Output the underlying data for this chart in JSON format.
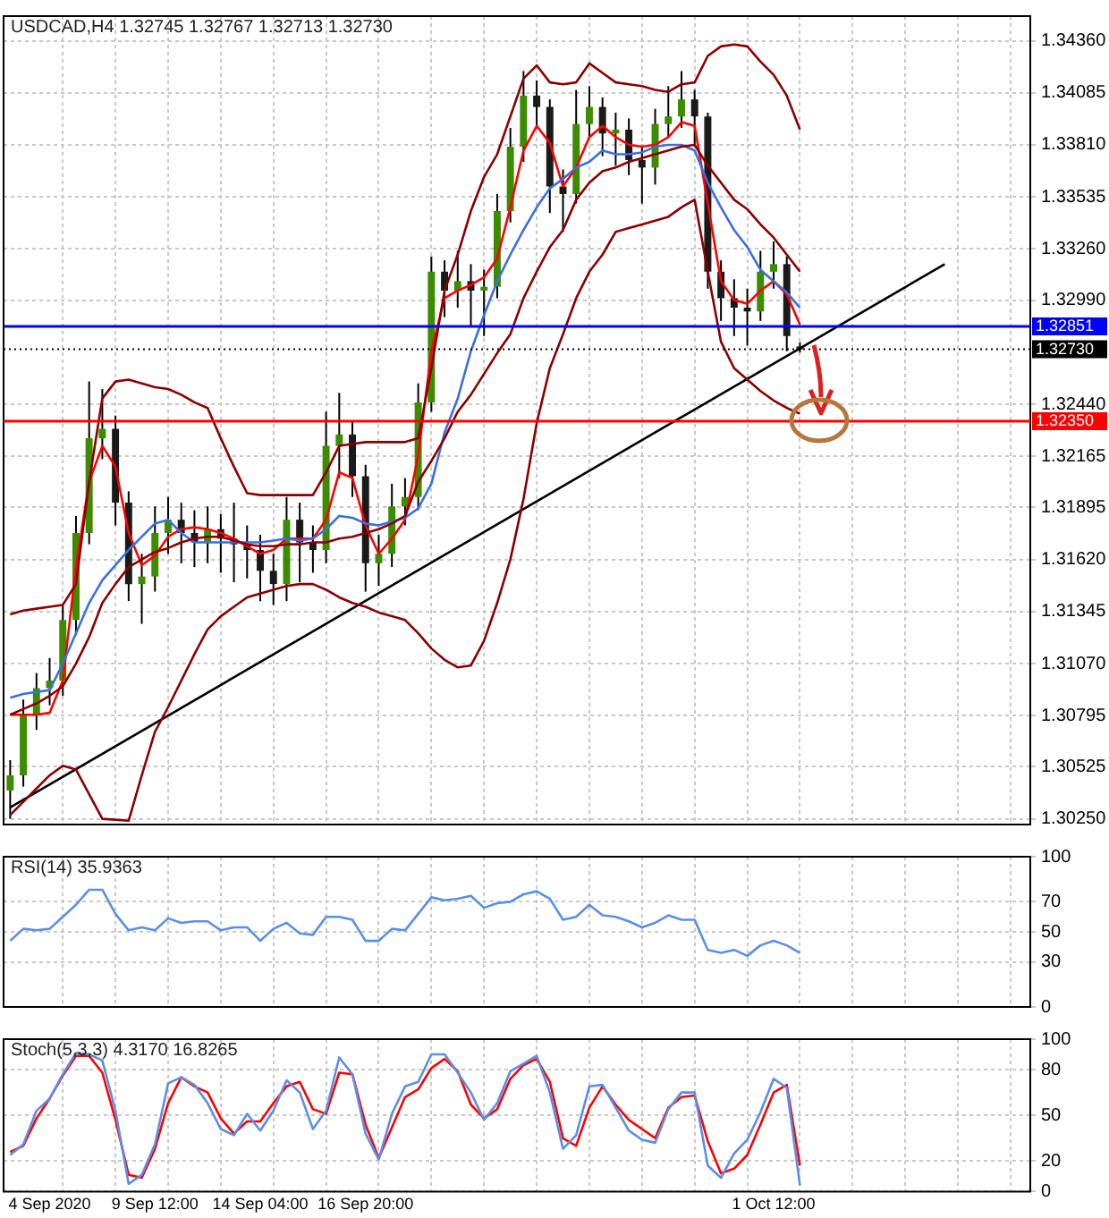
{
  "chart_data": [
    {
      "type": "candlestick",
      "title": "USDCAD,H4 1.32745 1.32767 1.32713 1.32730",
      "categories": [
        null,
        null,
        null,
        null,
        null,
        null,
        null,
        null,
        null,
        null,
        null,
        null,
        null,
        null,
        null,
        null,
        null,
        null,
        null,
        null,
        null,
        null,
        null,
        null,
        null,
        null,
        null,
        null,
        null,
        null,
        null,
        null,
        null,
        null,
        null,
        null,
        null,
        null,
        null,
        null,
        null,
        null,
        null,
        null,
        null,
        null,
        null,
        null,
        null,
        null,
        null,
        null,
        null,
        null,
        null,
        null,
        null,
        null,
        null,
        null,
        null,
        null,
        null,
        null,
        null,
        null,
        null,
        null,
        null,
        null,
        null,
        null,
        null,
        null,
        null,
        null,
        null,
        null
      ],
      "ohlc": [
        [
          1.304,
          1.3056,
          1.3025,
          1.3048
        ],
        [
          1.3048,
          1.3088,
          1.3042,
          1.308
        ],
        [
          1.308,
          1.3102,
          1.3072,
          1.3094
        ],
        [
          1.3094,
          1.311,
          1.3085,
          1.3098
        ],
        [
          1.3098,
          1.3138,
          1.309,
          1.313
        ],
        [
          1.313,
          1.3185,
          1.3122,
          1.3176
        ],
        [
          1.3176,
          1.3256,
          1.317,
          1.3226
        ],
        [
          1.3226,
          1.3252,
          1.3215,
          1.3231
        ],
        [
          1.3231,
          1.3238,
          1.318,
          1.3192
        ],
        [
          1.3192,
          1.3198,
          1.314,
          1.3149
        ],
        [
          1.3149,
          1.3165,
          1.3128,
          1.3153
        ],
        [
          1.3153,
          1.319,
          1.3145,
          1.3176
        ],
        [
          1.3176,
          1.3195,
          1.3165,
          1.3183
        ],
        [
          1.3183,
          1.3192,
          1.316,
          1.3176
        ],
        [
          1.3176,
          1.3188,
          1.3158,
          1.3171
        ],
        [
          1.3171,
          1.319,
          1.316,
          1.3178
        ],
        [
          1.3178,
          1.3186,
          1.3155,
          1.3173
        ],
        [
          1.3173,
          1.3192,
          1.315,
          1.317
        ],
        [
          1.317,
          1.318,
          1.3152,
          1.3167
        ],
        [
          1.3167,
          1.3175,
          1.314,
          1.3156
        ],
        [
          1.3156,
          1.3165,
          1.3138,
          1.3149
        ],
        [
          1.3149,
          1.3195,
          1.314,
          1.3183
        ],
        [
          1.3183,
          1.3192,
          1.315,
          1.3171
        ],
        [
          1.3171,
          1.318,
          1.3155,
          1.3167
        ],
        [
          1.3167,
          1.324,
          1.316,
          1.3222
        ],
        [
          1.3222,
          1.325,
          1.3205,
          1.3228
        ],
        [
          1.3228,
          1.3235,
          1.3195,
          1.3206
        ],
        [
          1.3206,
          1.3212,
          1.3145,
          1.316
        ],
        [
          1.316,
          1.3175,
          1.3148,
          1.3165
        ],
        [
          1.3165,
          1.3202,
          1.3158,
          1.319
        ],
        [
          1.319,
          1.3205,
          1.318,
          1.3195
        ],
        [
          1.3195,
          1.3255,
          1.3188,
          1.3245
        ],
        [
          1.3245,
          1.3322,
          1.324,
          1.3314
        ],
        [
          1.3314,
          1.332,
          1.329,
          1.3304
        ],
        [
          1.3304,
          1.3325,
          1.3295,
          1.3309
        ],
        [
          1.3309,
          1.3318,
          1.3285,
          1.3304
        ],
        [
          1.3304,
          1.3315,
          1.328,
          1.3306
        ],
        [
          1.3306,
          1.3355,
          1.33,
          1.3346
        ],
        [
          1.3346,
          1.339,
          1.334,
          1.338
        ],
        [
          1.338,
          1.342,
          1.3372,
          1.3407
        ],
        [
          1.3407,
          1.3415,
          1.339,
          1.3401
        ],
        [
          1.3401,
          1.3405,
          1.3345,
          1.3359
        ],
        [
          1.3359,
          1.3368,
          1.3335,
          1.3355
        ],
        [
          1.3355,
          1.341,
          1.335,
          1.3392
        ],
        [
          1.3392,
          1.3412,
          1.3385,
          1.3401
        ],
        [
          1.3401,
          1.3406,
          1.3375,
          1.3387
        ],
        [
          1.3387,
          1.3398,
          1.337,
          1.3389
        ],
        [
          1.3389,
          1.3395,
          1.3365,
          1.3373
        ],
        [
          1.3373,
          1.338,
          1.335,
          1.3369
        ],
        [
          1.3369,
          1.34,
          1.336,
          1.3392
        ],
        [
          1.3392,
          1.3412,
          1.3385,
          1.3396
        ],
        [
          1.3396,
          1.342,
          1.339,
          1.3405
        ],
        [
          1.3405,
          1.341,
          1.338,
          1.3396
        ],
        [
          1.3396,
          1.3398,
          1.3305,
          1.3314
        ],
        [
          1.3314,
          1.332,
          1.3288,
          1.33
        ],
        [
          1.33,
          1.331,
          1.328,
          1.3295
        ],
        [
          1.3295,
          1.3305,
          1.3275,
          1.3293
        ],
        [
          1.3293,
          1.3325,
          1.3288,
          1.3314
        ],
        [
          1.3314,
          1.333,
          1.3305,
          1.3318
        ],
        [
          1.3318,
          1.3322,
          1.3272,
          1.328
        ],
        [
          1.32745,
          1.32767,
          1.32713,
          1.3273
        ],
        null,
        null,
        null,
        null,
        null,
        null,
        null,
        null,
        null,
        null,
        null,
        null,
        null,
        null,
        null,
        null,
        null
      ],
      "colors": [
        "#3c8c00",
        "#3c8c00",
        "#3c8c00",
        "#3c8c00",
        "#3c8c00",
        "#3c8c00",
        "#3c8c00",
        "#3c8c00",
        "#1a1a1a",
        "#1a1a1a",
        "#3c8c00",
        "#3c8c00",
        "#3c8c00",
        "#1a1a1a",
        "#1a1a1a",
        "#3c8c00",
        "#1a1a1a",
        "#1a1a1a",
        "#1a1a1a",
        "#1a1a1a",
        "#1a1a1a",
        "#3c8c00",
        "#1a1a1a",
        "#1a1a1a",
        "#3c8c00",
        "#3c8c00",
        "#1a1a1a",
        "#1a1a1a",
        "#3c8c00",
        "#3c8c00",
        "#3c8c00",
        "#3c8c00",
        "#3c8c00",
        "#1a1a1a",
        "#3c8c00",
        "#1a1a1a",
        "#3c8c00",
        "#3c8c00",
        "#3c8c00",
        "#3c8c00",
        "#1a1a1a",
        "#1a1a1a",
        "#1a1a1a",
        "#3c8c00",
        "#3c8c00",
        "#1a1a1a",
        "#3c8c00",
        "#1a1a1a",
        "#1a1a1a",
        "#3c8c00",
        "#3c8c00",
        "#3c8c00",
        "#1a1a1a",
        "#1a1a1a",
        "#1a1a1a",
        "#1a1a1a",
        "#1a1a1a",
        "#3c8c00",
        "#3c8c00",
        "#1a1a1a",
        "#1a1a1a",
        null,
        null,
        null,
        null,
        null,
        null,
        null,
        null,
        null,
        null,
        null,
        null,
        null,
        null,
        null,
        null,
        null
      ],
      "series": [
        {
          "type": "line",
          "color": "#8b0000",
          "values": [
            1.3133,
            1.3135,
            1.3136,
            1.3137,
            1.3138,
            1.3149,
            1.3203,
            1.3247,
            1.3256,
            1.3257,
            1.3255,
            1.3253,
            1.3252,
            1.3249,
            1.3245,
            1.3242,
            1.3226,
            1.3211,
            1.3197,
            1.3196,
            1.3196,
            1.3196,
            1.3196,
            1.3196,
            1.3208,
            1.3222,
            1.3223,
            1.3224,
            1.3224,
            1.3224,
            1.3224,
            1.3226,
            1.3263,
            1.3304,
            1.3323,
            1.3346,
            1.3364,
            1.3376,
            1.3396,
            1.3416,
            1.3423,
            1.3414,
            1.3413,
            1.3414,
            1.3424,
            1.3419,
            1.3414,
            1.3413,
            1.3412,
            1.341,
            1.3409,
            1.3413,
            1.3414,
            1.3428,
            1.3433,
            1.3434,
            1.3433,
            1.3425,
            1.3418,
            1.3407,
            1.3389,
            null,
            null,
            null,
            null,
            null,
            null,
            null,
            null,
            null,
            null,
            null,
            null,
            null,
            null,
            null,
            null,
            null
          ]
        },
        {
          "type": "line",
          "color": "#8b0000",
          "values": [
            1.308,
            1.3083,
            1.3086,
            1.309,
            1.3095,
            1.3107,
            1.3121,
            1.3139,
            1.3149,
            1.3158,
            1.3162,
            1.3166,
            1.3168,
            1.3171,
            1.3173,
            1.3174,
            1.3174,
            1.3172,
            1.317,
            1.3169,
            1.3169,
            1.317,
            1.317,
            1.3171,
            1.3171,
            1.3173,
            1.3174,
            1.3176,
            1.3178,
            1.3181,
            1.3185,
            1.3203,
            1.3214,
            1.3226,
            1.324,
            1.3249,
            1.326,
            1.3271,
            1.3281,
            1.33,
            1.3314,
            1.3327,
            1.3336,
            1.3352,
            1.3361,
            1.3367,
            1.3369,
            1.3372,
            1.3374,
            1.3376,
            1.3378,
            1.338,
            1.3381,
            1.337,
            1.3361,
            1.3352,
            1.3347,
            1.3339,
            1.3332,
            1.3323,
            1.3314,
            null,
            null,
            null,
            null,
            null,
            null,
            null,
            null,
            null,
            null,
            null,
            null,
            null,
            null,
            null,
            null,
            null
          ]
        },
        {
          "type": "line",
          "color": "#8b0000",
          "values": [
            1.3027,
            1.3034,
            1.3041,
            1.3048,
            1.3053,
            1.3051,
            1.3038,
            1.3025,
            null,
            1.3024,
            1.3048,
            1.3071,
            1.3084,
            1.3098,
            1.3112,
            1.3125,
            1.3132,
            1.3137,
            1.3142,
            1.3144,
            1.3146,
            1.3148,
            1.3149,
            1.3149,
            1.3146,
            1.3142,
            1.3139,
            1.3137,
            1.3134,
            1.3132,
            1.313,
            1.3123,
            1.3115,
            1.3109,
            1.3105,
            1.3106,
            1.3119,
            1.3139,
            1.3162,
            1.3194,
            1.3234,
            1.3263,
            1.3281,
            1.33,
            1.3314,
            1.3323,
            1.3335,
            1.3337,
            1.3339,
            1.3341,
            1.3343,
            1.3348,
            1.3352,
            1.3314,
            1.3277,
            1.3263,
            1.3257,
            1.3251,
            1.3246,
            1.3242,
            1.3239,
            null,
            null,
            null,
            null,
            null,
            null,
            null,
            null,
            null,
            null,
            null,
            null,
            null,
            null,
            null,
            null,
            null
          ]
        },
        {
          "type": "line",
          "color": "#3a6fe0",
          "values": [
            1.3089,
            1.3091,
            1.3092,
            1.3093,
            1.3107,
            1.3123,
            1.3139,
            1.3151,
            1.3159,
            1.3167,
            1.3174,
            1.3181,
            1.3183,
            1.3176,
            1.3171,
            1.3171,
            1.3171,
            1.3171,
            1.3171,
            1.3171,
            1.3172,
            1.3173,
            1.3172,
            1.3173,
            1.3178,
            1.3185,
            1.3184,
            1.3181,
            1.318,
            1.3182,
            1.3184,
            1.3189,
            1.3202,
            1.3229,
            1.3247,
            1.3272,
            1.3291,
            1.3309,
            1.3323,
            1.3336,
            1.3348,
            1.3358,
            1.3363,
            1.3369,
            1.3372,
            1.3378,
            1.3376,
            1.3376,
            1.3377,
            1.338,
            1.3381,
            1.3381,
            1.3378,
            1.3361,
            1.3348,
            1.3336,
            1.3327,
            1.3315,
            1.3309,
            1.3303,
            1.3295,
            null,
            null,
            null,
            null,
            null,
            null,
            null,
            null,
            null,
            null,
            null,
            null,
            null,
            null,
            null,
            null,
            null
          ]
        },
        {
          "type": "line",
          "color": "#ff0000",
          "values": [
            1.308,
            1.308,
            1.308,
            1.3081,
            1.3098,
            1.3158,
            1.3203,
            1.3222,
            1.3211,
            1.3176,
            1.3159,
            1.3164,
            1.3174,
            1.3178,
            1.3179,
            1.3178,
            1.3176,
            1.3173,
            1.3169,
            1.3165,
            1.3167,
            1.3173,
            1.3173,
            1.3173,
            1.3183,
            1.3208,
            1.3205,
            1.318,
            1.3165,
            1.3173,
            1.3183,
            1.3217,
            1.3272,
            1.33,
            1.3304,
            1.3307,
            1.3311,
            1.3321,
            1.3348,
            1.3378,
            1.3391,
            1.3382,
            1.3359,
            1.3369,
            1.3385,
            1.3391,
            1.3385,
            1.3381,
            1.338,
            1.3381,
            1.3385,
            1.3393,
            1.3391,
            1.335,
            1.3309,
            1.3299,
            1.3297,
            1.3304,
            1.3309,
            1.3302,
            1.3286,
            null,
            null,
            null,
            null,
            null,
            null,
            null,
            null,
            null,
            null,
            null,
            null,
            null,
            null,
            null,
            null,
            null
          ]
        },
        {
          "type": "line",
          "color": "#000000",
          "values": [
            1.3031,
            null,
            null,
            null,
            null,
            null,
            null,
            null,
            null,
            null,
            null,
            null,
            null,
            null,
            null,
            null,
            null,
            null,
            null,
            null,
            null,
            null,
            null,
            null,
            null,
            null,
            null,
            null,
            null,
            null,
            null,
            null,
            null,
            null,
            null,
            null,
            null,
            null,
            null,
            null,
            null,
            null,
            null,
            null,
            null,
            null,
            null,
            null,
            null,
            null,
            null,
            null,
            null,
            null,
            null,
            null,
            null,
            null,
            null,
            null,
            null,
            null,
            null,
            null,
            null,
            null,
            null,
            null,
            null,
            null,
            null,
            1.3318,
            null,
            null,
            null,
            null,
            null,
            null
          ]
        }
      ],
      "ylim": [
        1.3022,
        1.3449
      ],
      "yticks": [
        {
          "value": 1.3025,
          "label": "1.30250"
        },
        {
          "value": 1.30525,
          "label": "1.30525"
        },
        {
          "value": 1.30795,
          "label": "1.30795"
        },
        {
          "value": 1.3107,
          "label": "1.31070"
        },
        {
          "value": 1.31345,
          "label": "1.31345"
        },
        {
          "value": 1.3162,
          "label": "1.31620"
        },
        {
          "value": 1.31895,
          "label": "1.31895"
        },
        {
          "value": 1.32165,
          "label": "1.32165"
        },
        {
          "value": 1.3244,
          "label": "1.32440"
        },
        {
          "value": 1.3299,
          "label": "1.32990"
        },
        {
          "value": 1.3326,
          "label": "1.33260"
        },
        {
          "value": 1.33535,
          "label": "1.33535"
        },
        {
          "value": 1.3381,
          "label": "1.33810"
        },
        {
          "value": 1.34085,
          "label": "1.34085"
        },
        {
          "value": 1.3436,
          "label": "1.34360"
        }
      ],
      "ref_lines": [
        {
          "axis": "y",
          "value": 1.32851,
          "label": "1.32851",
          "color": "#0000ff",
          "line_style": "solid"
        },
        {
          "axis": "y",
          "value": 1.3235,
          "label": "1.32350",
          "color": "#ff0000",
          "line_style": "solid"
        },
        {
          "axis": "y",
          "value": 1.3273,
          "label": "1.32730",
          "color": "#000000",
          "line_style": "dotted"
        }
      ],
      "grid": true,
      "tick_labels": "y"
    },
    {
      "type": "line",
      "title": "RSI(14) 35.9363",
      "categories": [
        null,
        null,
        null,
        null,
        null,
        null,
        null,
        null,
        null,
        null,
        null,
        null,
        null,
        null,
        null,
        null,
        null,
        null,
        null,
        null,
        null,
        null,
        null,
        null,
        null,
        null,
        null,
        null,
        null,
        null,
        null,
        null,
        null,
        null,
        null,
        null,
        null,
        null,
        null,
        null,
        null,
        null,
        null,
        null,
        null,
        null,
        null,
        null,
        null,
        null,
        null,
        null,
        null,
        null,
        null,
        null,
        null,
        null,
        null,
        null,
        null,
        null,
        null,
        null,
        null,
        null,
        null,
        null,
        null,
        null,
        null,
        null,
        null,
        null,
        null,
        null,
        null,
        null
      ],
      "series": [
        {
          "color": "#5b8ee6",
          "values": [
            44,
            52,
            51,
            52,
            60,
            68,
            78,
            78,
            62,
            51,
            53,
            51,
            59,
            56,
            57,
            57,
            51,
            53,
            53,
            44,
            52,
            56,
            49,
            48,
            60,
            60,
            58,
            44,
            44,
            52,
            51,
            62,
            73,
            71,
            72,
            74,
            66,
            69,
            70,
            75,
            77,
            72,
            58,
            60,
            68,
            61,
            60,
            57,
            53,
            56,
            61,
            58,
            58,
            38,
            36,
            38,
            34,
            41,
            44,
            41,
            36,
            null,
            null,
            null,
            null,
            null,
            null,
            null,
            null,
            null,
            null,
            null,
            null,
            null,
            null,
            null,
            null,
            null
          ]
        }
      ],
      "ylim": [
        0,
        100
      ],
      "yticks": [
        0,
        30,
        50,
        70,
        100
      ],
      "grid": true,
      "tick_labels": "y"
    },
    {
      "type": "line",
      "title": "Stoch(5,3,3) 4.3170 16.8265",
      "categories": [
        null,
        null,
        null,
        "4 Sep 2020",
        null,
        null,
        null,
        null,
        null,
        null,
        null,
        "9 Sep 12:00",
        null,
        null,
        null,
        null,
        null,
        null,
        null,
        "14 Sep 04:00",
        null,
        null,
        null,
        null,
        null,
        null,
        null,
        "16 Sep 20:00",
        null,
        null,
        null,
        null,
        null,
        null,
        null,
        null,
        null,
        null,
        null,
        null,
        null,
        null,
        null,
        null,
        null,
        null,
        null,
        null,
        null,
        null,
        null,
        null,
        null,
        null,
        null,
        null,
        null,
        null,
        "1 Oct 12:00",
        null,
        null,
        null,
        null,
        null,
        null,
        null,
        null,
        null,
        null,
        null,
        null,
        null,
        null,
        null,
        null,
        null,
        null,
        null
      ],
      "series": [
        {
          "color": "#5b8ee6",
          "values": [
            24,
            31,
            53,
            61,
            77,
            91,
            90,
            86,
            53,
            5,
            11,
            31,
            71,
            75,
            70,
            58,
            41,
            37,
            51,
            40,
            53,
            73,
            65,
            41,
            53,
            88,
            77,
            38,
            21,
            51,
            69,
            72,
            90,
            90,
            78,
            65,
            47,
            58,
            79,
            84,
            89,
            65,
            28,
            37,
            69,
            70,
            55,
            40,
            34,
            32,
            54,
            65,
            65,
            17,
            9,
            25,
            34,
            52,
            74,
            68,
            4,
            null,
            null,
            null,
            null,
            null,
            null,
            null,
            null,
            null,
            null,
            null,
            null,
            null,
            null,
            null,
            null,
            null
          ]
        },
        {
          "color": "#ff0000",
          "values": [
            26,
            30,
            48,
            61,
            76,
            89,
            89,
            78,
            47,
            11,
            9,
            28,
            58,
            75,
            69,
            65,
            48,
            38,
            46,
            46,
            58,
            69,
            72,
            54,
            51,
            78,
            77,
            44,
            22,
            42,
            62,
            67,
            81,
            87,
            79,
            57,
            48,
            54,
            74,
            83,
            87,
            72,
            35,
            30,
            55,
            69,
            57,
            47,
            41,
            35,
            55,
            62,
            63,
            33,
            12,
            15,
            24,
            44,
            65,
            70,
            17,
            null,
            null,
            null,
            null,
            null,
            null,
            null,
            null,
            null,
            null,
            null,
            null,
            null,
            null,
            null,
            null,
            null
          ]
        }
      ],
      "ylim": [
        0,
        100
      ],
      "yticks": [
        0,
        20,
        50,
        80,
        100
      ],
      "grid": true
    }
  ]
}
